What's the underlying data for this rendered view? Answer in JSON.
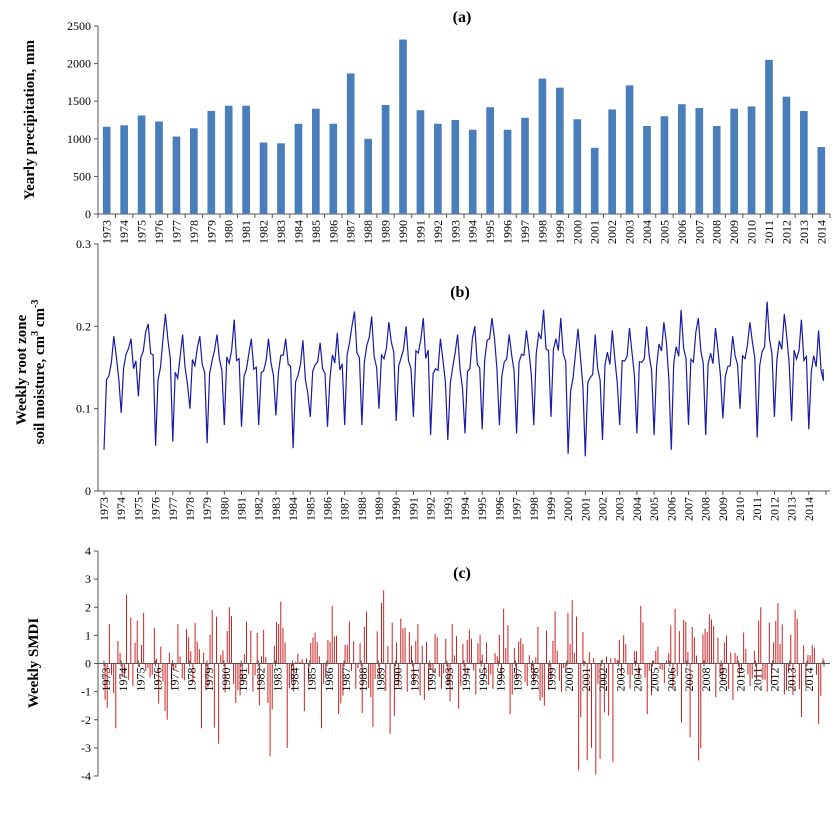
{
  "chart_data": [
    {
      "type": "bar",
      "panel": "(a)",
      "title": "(a)",
      "ylabel": "Yearly precipitation, mm",
      "xlabel": "",
      "ylim": [
        0,
        2500
      ],
      "yticks": [
        0,
        500,
        1000,
        1500,
        2000,
        2500
      ],
      "color": "#4a7ebb",
      "categories": [
        "1973",
        "1974",
        "1975",
        "1976",
        "1977",
        "1978",
        "1979",
        "1980",
        "1981",
        "1982",
        "1983",
        "1984",
        "1985",
        "1986",
        "1987",
        "1988",
        "1989",
        "1990",
        "1991",
        "1992",
        "1993",
        "1994",
        "1995",
        "1996",
        "1997",
        "1998",
        "1999",
        "2000",
        "2001",
        "2002",
        "2003",
        "2004",
        "2005",
        "2006",
        "2007",
        "2008",
        "2009",
        "2010",
        "2011",
        "2012",
        "2013",
        "2014"
      ],
      "values": [
        1160,
        1180,
        1310,
        1230,
        1030,
        1140,
        1370,
        1440,
        1440,
        950,
        940,
        1200,
        1400,
        1200,
        1870,
        1000,
        1450,
        2320,
        1380,
        1200,
        1250,
        1120,
        1420,
        1120,
        1280,
        1800,
        1680,
        1260,
        880,
        1390,
        1710,
        1170,
        1300,
        1460,
        1410,
        1170,
        1400,
        1430,
        2050,
        1560,
        1370,
        890
      ]
    },
    {
      "type": "line",
      "panel": "(b)",
      "title": "(b)",
      "ylabel_lines": [
        "Weekly root zone",
        "soil moisture, cm",
        "3",
        " cm",
        "-3"
      ],
      "xlabel": "",
      "ylim": [
        0,
        0.3
      ],
      "ytick_labels": [
        "0",
        "0.1",
        "0.2",
        "0.3"
      ],
      "color": "#1a1aa6",
      "categories": [
        "1973",
        "1974",
        "1975",
        "1976",
        "1977",
        "1978",
        "1979",
        "1980",
        "1981",
        "1982",
        "1983",
        "1984",
        "1985",
        "1986",
        "1987",
        "1988",
        "1989",
        "1990",
        "1991",
        "1992",
        "1993",
        "1994",
        "1995",
        "1996",
        "1997",
        "1998",
        "1999",
        "2000",
        "2001",
        "2002",
        "2003",
        "2004",
        "2005",
        "2006",
        "2007",
        "2008",
        "2009",
        "2010",
        "2011",
        "2012",
        "2013",
        "2014"
      ],
      "annual_max": [
        0.188,
        0.185,
        0.203,
        0.215,
        0.19,
        0.188,
        0.19,
        0.208,
        0.185,
        0.185,
        0.185,
        0.183,
        0.18,
        0.192,
        0.218,
        0.212,
        0.205,
        0.2,
        0.21,
        0.185,
        0.19,
        0.2,
        0.21,
        0.19,
        0.195,
        0.22,
        0.21,
        0.197,
        0.19,
        0.195,
        0.198,
        0.2,
        0.205,
        0.22,
        0.21,
        0.198,
        0.188,
        0.205,
        0.23,
        0.215,
        0.208,
        0.195
      ],
      "annual_min": [
        0.05,
        0.095,
        0.115,
        0.055,
        0.06,
        0.1,
        0.058,
        0.08,
        0.078,
        0.08,
        0.092,
        0.052,
        0.09,
        0.078,
        0.08,
        0.08,
        0.1,
        0.085,
        0.09,
        0.068,
        0.062,
        0.07,
        0.075,
        0.08,
        0.07,
        0.08,
        0.09,
        0.045,
        0.042,
        0.062,
        0.08,
        0.07,
        0.068,
        0.05,
        0.08,
        0.068,
        0.088,
        0.1,
        0.065,
        0.09,
        0.085,
        0.075
      ],
      "final_value": 0.148
    },
    {
      "type": "bar",
      "panel": "(c)",
      "title": "(c)",
      "ylabel": "Weekly SMDI",
      "xlabel": "",
      "ylim": [
        -4,
        4
      ],
      "yticks": [
        -4,
        -3,
        -2,
        -1,
        0,
        1,
        2,
        3,
        4
      ],
      "color": "#cc2222",
      "categories": [
        "1973",
        "1974",
        "1975",
        "1976",
        "1977",
        "1978",
        "1979",
        "1980",
        "1981",
        "1982",
        "1983",
        "1984",
        "1985",
        "1986",
        "1987",
        "1988",
        "1989",
        "1990",
        "1991",
        "1992",
        "1993",
        "1994",
        "1995",
        "1996",
        "1997",
        "1998",
        "1999",
        "2000",
        "2001",
        "2002",
        "2003",
        "2004",
        "2005",
        "2006",
        "2007",
        "2008",
        "2009",
        "2010",
        "2011",
        "2012",
        "2013",
        "2014"
      ],
      "annual_max": [
        1.4,
        2.45,
        1.8,
        0.6,
        1.4,
        1.45,
        1.9,
        2.0,
        1.5,
        1.2,
        2.2,
        0.35,
        1.1,
        2.05,
        1.5,
        1.85,
        2.6,
        1.6,
        1.4,
        1.05,
        1.4,
        1.2,
        0.75,
        1.95,
        0.9,
        1.3,
        1.85,
        2.25,
        0.4,
        0.25,
        1.0,
        2.05,
        0.6,
        1.95,
        1.3,
        1.75,
        1.0,
        1.1,
        2.0,
        2.15,
        1.9,
        0.65
      ],
      "annual_min": [
        -2.3,
        -0.8,
        -0.5,
        -2.0,
        -0.6,
        -2.3,
        -2.85,
        -1.4,
        -1.0,
        -3.3,
        -3.0,
        -1.7,
        -2.3,
        -1.8,
        -0.9,
        -2.25,
        -2.5,
        -1.0,
        -1.3,
        -0.9,
        -1.6,
        -1.1,
        -0.9,
        -1.8,
        -0.8,
        -1.5,
        -1.0,
        -3.8,
        -3.95,
        -3.5,
        -0.9,
        -1.8,
        -0.7,
        -2.1,
        -3.45,
        -1.2,
        -1.3,
        -0.8,
        -1.0,
        -1.1,
        -1.9,
        -2.15
      ]
    }
  ]
}
